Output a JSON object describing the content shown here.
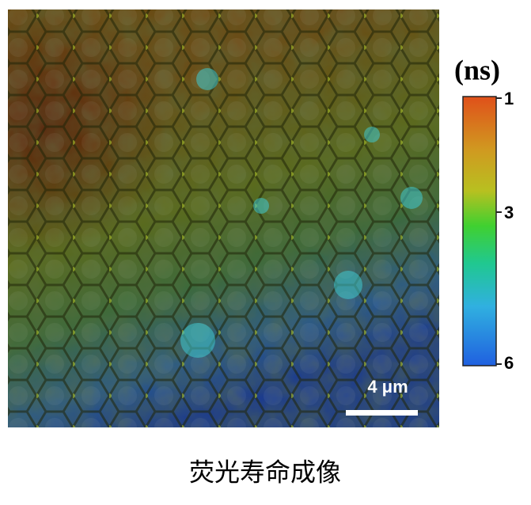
{
  "image": {
    "scale_bar_label": "4 μm"
  },
  "colorbar": {
    "unit": "(ns)",
    "ticks": [
      1,
      3,
      6
    ]
  },
  "caption": "荧光寿命成像"
}
